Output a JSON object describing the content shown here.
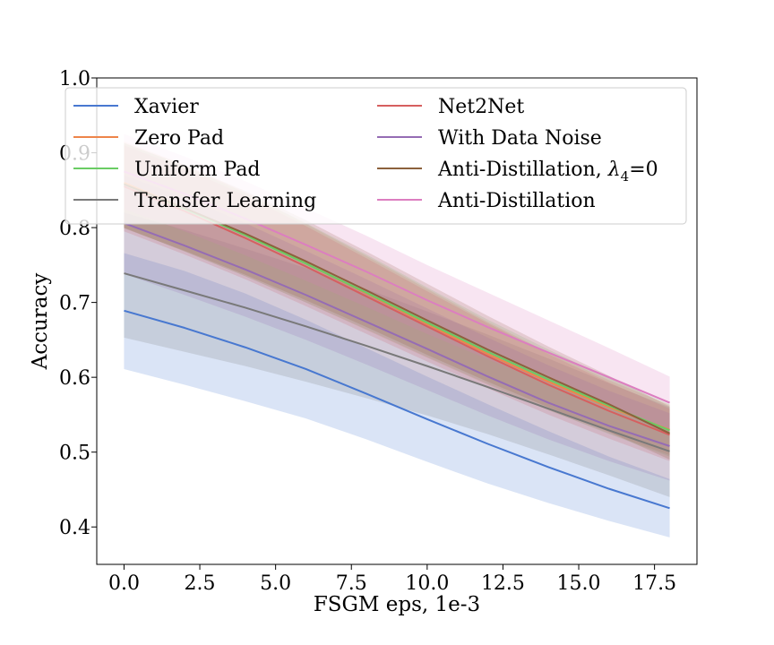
{
  "chart_data": {
    "type": "line",
    "xlabel": "FSGM eps, 1e-3",
    "ylabel": "Accuracy",
    "xlim": [
      -0.9,
      18.9
    ],
    "ylim": [
      0.35,
      1.0
    ],
    "xticks": [
      0.0,
      2.5,
      5.0,
      7.5,
      10.0,
      12.5,
      15.0,
      17.5
    ],
    "xtick_labels": [
      "0.0",
      "2.5",
      "5.0",
      "7.5",
      "10.0",
      "12.5",
      "15.0",
      "17.5"
    ],
    "yticks": [
      0.4,
      0.5,
      0.6,
      0.7,
      0.8,
      0.9,
      1.0
    ],
    "ytick_labels": [
      "0.4",
      "0.5",
      "0.6",
      "0.7",
      "0.8",
      "0.9",
      "1.0"
    ],
    "grid": false,
    "legend": {
      "placement": "top",
      "columns": 2,
      "label_anti_distillation_l4_prefix": "Anti-Distillation, ",
      "label_lambda": "λ",
      "label_lambda_sub": "4",
      "label_lambda_suffix": "=0"
    },
    "x": [
      0,
      2,
      4,
      6,
      8,
      10,
      12,
      14,
      16,
      18
    ],
    "series": [
      {
        "name": "Xavier",
        "color": "#4878d0",
        "values": [
          0.689,
          0.666,
          0.64,
          0.611,
          0.578,
          0.544,
          0.511,
          0.48,
          0.451,
          0.425
        ],
        "lower": [
          0.611,
          0.59,
          0.568,
          0.545,
          0.517,
          0.487,
          0.458,
          0.432,
          0.408,
          0.386
        ],
        "upper": [
          0.766,
          0.742,
          0.712,
          0.677,
          0.639,
          0.601,
          0.564,
          0.528,
          0.494,
          0.464
        ]
      },
      {
        "name": "Zero Pad",
        "color": "#ee854a",
        "values": [
          0.86,
          0.826,
          0.79,
          0.752,
          0.712,
          0.671,
          0.631,
          0.594,
          0.56,
          0.53
        ],
        "lower": [
          0.8,
          0.768,
          0.735,
          0.7,
          0.663,
          0.626,
          0.59,
          0.556,
          0.525,
          0.496
        ],
        "upper": [
          0.915,
          0.884,
          0.847,
          0.805,
          0.762,
          0.718,
          0.674,
          0.633,
          0.596,
          0.563
        ]
      },
      {
        "name": "Uniform Pad",
        "color": "#6acc64",
        "values": [
          0.858,
          0.825,
          0.79,
          0.752,
          0.713,
          0.673,
          0.634,
          0.597,
          0.562,
          0.529
        ],
        "lower": [
          0.8,
          0.768,
          0.735,
          0.7,
          0.664,
          0.627,
          0.591,
          0.556,
          0.524,
          0.494
        ],
        "upper": [
          0.913,
          0.882,
          0.846,
          0.806,
          0.764,
          0.72,
          0.677,
          0.637,
          0.599,
          0.564
        ]
      },
      {
        "name": "Transfer Learning",
        "color": "#797979",
        "values": [
          0.739,
          0.716,
          0.693,
          0.668,
          0.642,
          0.615,
          0.587,
          0.558,
          0.529,
          0.501
        ],
        "lower": [
          0.653,
          0.634,
          0.615,
          0.594,
          0.572,
          0.549,
          0.524,
          0.497,
          0.469,
          0.44
        ],
        "upper": [
          0.82,
          0.797,
          0.772,
          0.746,
          0.718,
          0.688,
          0.657,
          0.625,
          0.592,
          0.56
        ]
      },
      {
        "name": "Net2Net",
        "color": "#d65f5f",
        "values": [
          0.855,
          0.822,
          0.786,
          0.748,
          0.708,
          0.668,
          0.628,
          0.59,
          0.555,
          0.523
        ],
        "lower": [
          0.795,
          0.764,
          0.731,
          0.695,
          0.658,
          0.621,
          0.585,
          0.55,
          0.518,
          0.488
        ],
        "upper": [
          0.91,
          0.879,
          0.843,
          0.802,
          0.759,
          0.715,
          0.672,
          0.631,
          0.593,
          0.558
        ]
      },
      {
        "name": "With Data Noise",
        "color": "#956cb4",
        "values": [
          0.806,
          0.776,
          0.744,
          0.71,
          0.674,
          0.638,
          0.601,
          0.566,
          0.535,
          0.508
        ],
        "lower": [
          0.738,
          0.71,
          0.681,
          0.65,
          0.617,
          0.583,
          0.549,
          0.517,
          0.488,
          0.462
        ],
        "upper": [
          0.87,
          0.84,
          0.806,
          0.769,
          0.731,
          0.692,
          0.653,
          0.616,
          0.582,
          0.552
        ]
      },
      {
        "name": "Anti-Distillation, λ4=0",
        "color": "#8c613c",
        "values": [
          0.858,
          0.826,
          0.792,
          0.755,
          0.716,
          0.676,
          0.637,
          0.6,
          0.564,
          0.525
        ],
        "lower": [
          0.799,
          0.769,
          0.737,
          0.703,
          0.667,
          0.63,
          0.594,
          0.56,
          0.527,
          0.49
        ],
        "upper": [
          0.913,
          0.883,
          0.849,
          0.81,
          0.768,
          0.725,
          0.682,
          0.641,
          0.602,
          0.561
        ]
      },
      {
        "name": "Anti-Distillation",
        "color": "#dc7ec0",
        "values": [
          0.875,
          0.845,
          0.812,
          0.777,
          0.741,
          0.703,
          0.667,
          0.633,
          0.6,
          0.566
        ],
        "lower": [
          0.825,
          0.795,
          0.763,
          0.729,
          0.694,
          0.658,
          0.624,
          0.591,
          0.56,
          0.529
        ],
        "upper": [
          0.925,
          0.895,
          0.862,
          0.826,
          0.789,
          0.75,
          0.713,
          0.676,
          0.639,
          0.601
        ]
      }
    ]
  }
}
